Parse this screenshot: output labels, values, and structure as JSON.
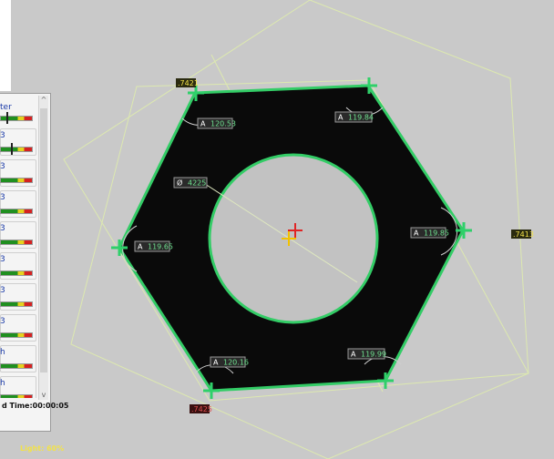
{
  "panel": {
    "header_label": "ter",
    "items": [
      {
        "label": "3"
      },
      {
        "label": "3"
      },
      {
        "label": "3"
      },
      {
        "label": "3"
      },
      {
        "label": "3"
      },
      {
        "label": "3"
      },
      {
        "label": "3"
      },
      {
        "label": "h"
      },
      {
        "label": "h"
      },
      {
        "label": "h"
      }
    ],
    "timer": "d Time:00:00:05",
    "scroll_up": "^",
    "scroll_down": "v"
  },
  "measurements": {
    "angle_prefix": "A",
    "angles": [
      "120.53",
      "119.84",
      "119.65",
      "119.85",
      "120.16",
      "119.99"
    ],
    "diameter_prefix": "Ø",
    "diameter": "4225",
    "edge_tags": [
      ".7421",
      ".7413",
      ".7425"
    ]
  },
  "status": {
    "light": "Light: 60%"
  },
  "colors": {
    "edge": "#33cc66",
    "guide": "#d8e8a8",
    "part": "#0a0a0a",
    "background": "#c9c9c9"
  }
}
